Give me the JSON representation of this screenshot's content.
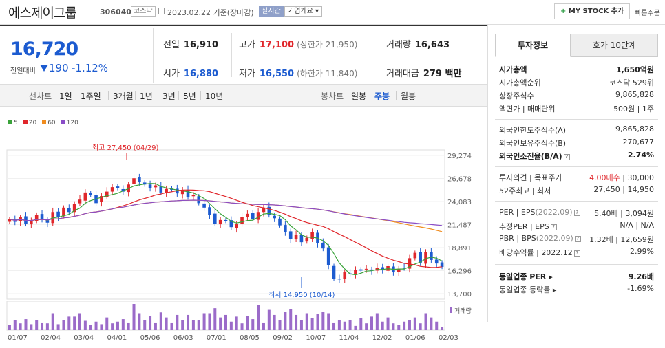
{
  "header": {
    "company": "에스제이그룹",
    "code": "306040",
    "market": "코스닥",
    "date": "2023.02.22 기준(장마감)",
    "realtime": "실시간",
    "overview": "기업개요",
    "mystock": "MY STOCK 추가",
    "quick": "빠른주문"
  },
  "price": {
    "current": "16,720",
    "change_label": "전일대비",
    "change": "190",
    "change_pct": "-1.12%",
    "prev_label": "전일",
    "prev": "16,910",
    "high_label": "고가",
    "high": "17,100",
    "upper_limit": "(상한가 21,950)",
    "volume_label": "거래량",
    "volume": "16,643",
    "open_label": "시가",
    "open": "16,880",
    "low_label": "저가",
    "low": "16,550",
    "lower_limit": "(하한가 11,840)",
    "amount_label": "거래대금",
    "amount": "279 백만"
  },
  "periods": {
    "line_label": "선차트",
    "line_items": [
      "1일",
      "1주일",
      "3개월",
      "1년",
      "3년",
      "5년",
      "10년"
    ],
    "candle_label": "봉차트",
    "candle_items": [
      "일봉",
      "주봉",
      "월봉"
    ],
    "candle_selected": "주봉"
  },
  "chart_data": {
    "type": "candlestick",
    "legend": [
      {
        "name": "5",
        "color": "#3aa33a"
      },
      {
        "name": "20",
        "color": "#e0262b"
      },
      {
        "name": "60",
        "color": "#f08c1e"
      },
      {
        "name": "120",
        "color": "#8a4dc7"
      }
    ],
    "y_ticks": [
      "29,274",
      "26,678",
      "24,083",
      "21,487",
      "18,891",
      "16,296",
      "13,700"
    ],
    "ylim": [
      13700,
      29274
    ],
    "x_ticks": [
      "01/07",
      "02/04",
      "03/04",
      "04/01",
      "05/06",
      "06/03",
      "07/01",
      "08/05",
      "09/02",
      "10/07",
      "11/04",
      "12/02",
      "01/06",
      "02/03"
    ],
    "high_annotation": "최고 27,450 (04/29)",
    "low_annotation": "최저 14,950 (10/14)",
    "volume_label": "거래량",
    "candles_close": [
      22100,
      21800,
      22300,
      21600,
      21900,
      22600,
      22100,
      21700,
      22900,
      22300,
      23400,
      22900,
      23800,
      24300,
      25100,
      24800,
      23900,
      24700,
      25200,
      25700,
      25600,
      25200,
      26000,
      26700,
      26300,
      26000,
      25600,
      25900,
      25100,
      25500,
      25400,
      25000,
      25400,
      24600,
      24800,
      23900,
      23400,
      22600,
      21600,
      22000,
      21900,
      21200,
      21600,
      22300,
      22700,
      22100,
      22900,
      23400,
      22600,
      22200,
      21400,
      20600,
      19900,
      20300,
      19500,
      20000,
      20600,
      19400,
      18800,
      16900,
      15400,
      15300,
      16100,
      15900,
      16400,
      16300,
      16500,
      16300,
      16600,
      16400,
      16800,
      16100,
      16500,
      16600,
      17700,
      18300,
      17200,
      18400,
      17500,
      17100,
      16720
    ],
    "volume": [
      6,
      12,
      8,
      13,
      7,
      12,
      9,
      8,
      20,
      7,
      12,
      16,
      16,
      20,
      11,
      6,
      10,
      7,
      15,
      8,
      10,
      13,
      9,
      31,
      20,
      12,
      17,
      9,
      21,
      15,
      9,
      18,
      12,
      18,
      12,
      12,
      20,
      20,
      26,
      15,
      18,
      10,
      16,
      8,
      17,
      13,
      30,
      9,
      24,
      18,
      12,
      22,
      25,
      18,
      12,
      20,
      14,
      19,
      22,
      20,
      9,
      12,
      10,
      12,
      5,
      14,
      8,
      16,
      20,
      10,
      15,
      8,
      6,
      10,
      12,
      15,
      8,
      20,
      15,
      10,
      4
    ]
  },
  "invest": {
    "tab_active": "투자정보",
    "tab_other": "호가 10단계",
    "mcap_label": "시가총액",
    "mcap": "1,650억원",
    "mcap_rank_label": "시가총액순위",
    "mcap_rank": "코스닥 529위",
    "shares_label": "상장주식수",
    "shares": "9,865,828",
    "par_label": "액면가 | 매매단위",
    "par": "500원 | 1주",
    "foreign_limit_label": "외국인한도주식수(A)",
    "foreign_limit": "9,865,828",
    "foreign_hold_label": "외국인보유주식수(B)",
    "foreign_hold": "270,677",
    "foreign_ratio_label": "외국인소진율(B/A)",
    "foreign_ratio": "2.74%",
    "opinion_label": "투자의견 | 목표주가",
    "opinion": "4.00매수",
    "target": "30,000",
    "w52_label": "52주최고 | 최저",
    "w52": "27,450 | 14,950",
    "per_label": "PER | EPS",
    "per_period": "(2022.09)",
    "per": "5.40배 | 3,094원",
    "est_label": "추정PER | EPS",
    "est": "N/A | N/A",
    "pbr_label": "PBR | BPS",
    "pbr_period": "(2022.09)",
    "pbr": "1.32배 | 12,659원",
    "div_label": "배당수익률",
    "div_period": "2022.12",
    "div": "2.99%",
    "ind_per_label": "동일업종 PER",
    "ind_per": "9.26배",
    "ind_chg_label": "동일업종 등락률",
    "ind_chg": "-1.69%"
  }
}
